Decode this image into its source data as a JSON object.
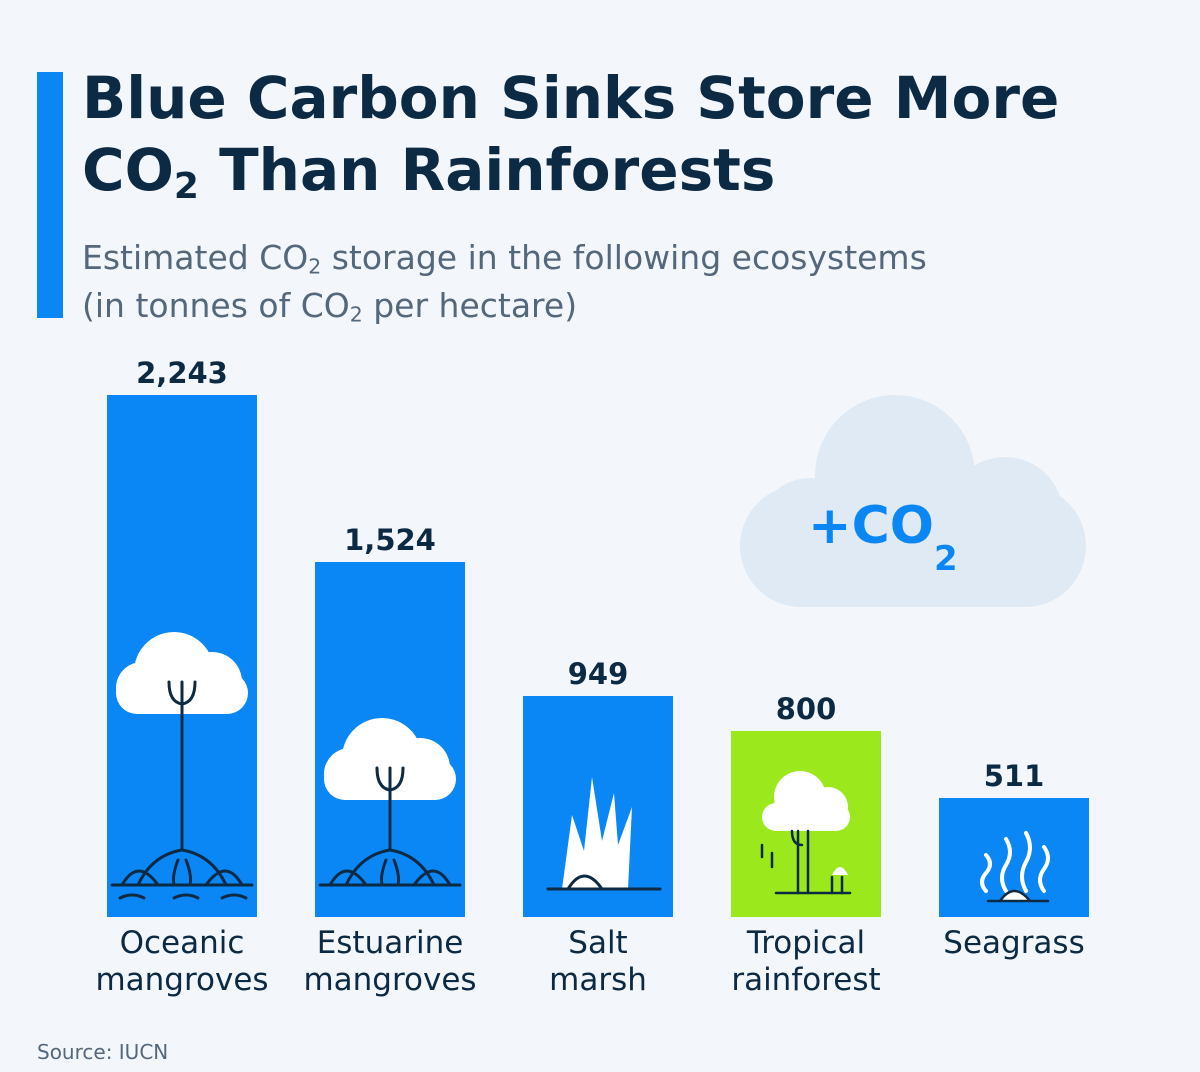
{
  "title": {
    "line1": "Blue Carbon Sinks Store More",
    "line2_prefix": "CO",
    "line2_sub": "2",
    "line2_suffix": " Than Rainforests"
  },
  "subtitle": {
    "line1_prefix": "Estimated CO",
    "line1_sub": "2",
    "line1_suffix": " storage in the following ecosystems",
    "line2_prefix": "(in tonnes of CO",
    "line2_sub": "2",
    "line2_suffix": " per hectare)"
  },
  "cloud_badge": {
    "prefix": "+CO",
    "sub": "2"
  },
  "source": "Source: IUCN",
  "colors": {
    "accent": "#0a87f5",
    "highlight": "#9be81d",
    "cloud": "#dfeaf5",
    "text": "#0d2a44"
  },
  "chart_data": {
    "type": "bar",
    "categories": [
      [
        "Oceanic",
        "mangroves"
      ],
      [
        "Estuarine",
        "mangroves"
      ],
      [
        "Salt",
        "marsh"
      ],
      [
        "Tropical",
        "rainforest"
      ],
      [
        "Seagrass"
      ]
    ],
    "values": [
      2243,
      1524,
      949,
      800,
      511
    ],
    "value_labels": [
      "2,243",
      "1,524",
      "949",
      "800",
      "511"
    ],
    "bar_colors": [
      "#0a87f5",
      "#0a87f5",
      "#0a87f5",
      "#9be81d",
      "#0a87f5"
    ],
    "icons": [
      "mangrove-tree-icon",
      "mangrove-tree-icon",
      "marsh-grass-icon",
      "rainforest-tree-icon",
      "seagrass-icon"
    ],
    "ylim": [
      0,
      2243
    ],
    "grid": false,
    "legend": "none"
  }
}
